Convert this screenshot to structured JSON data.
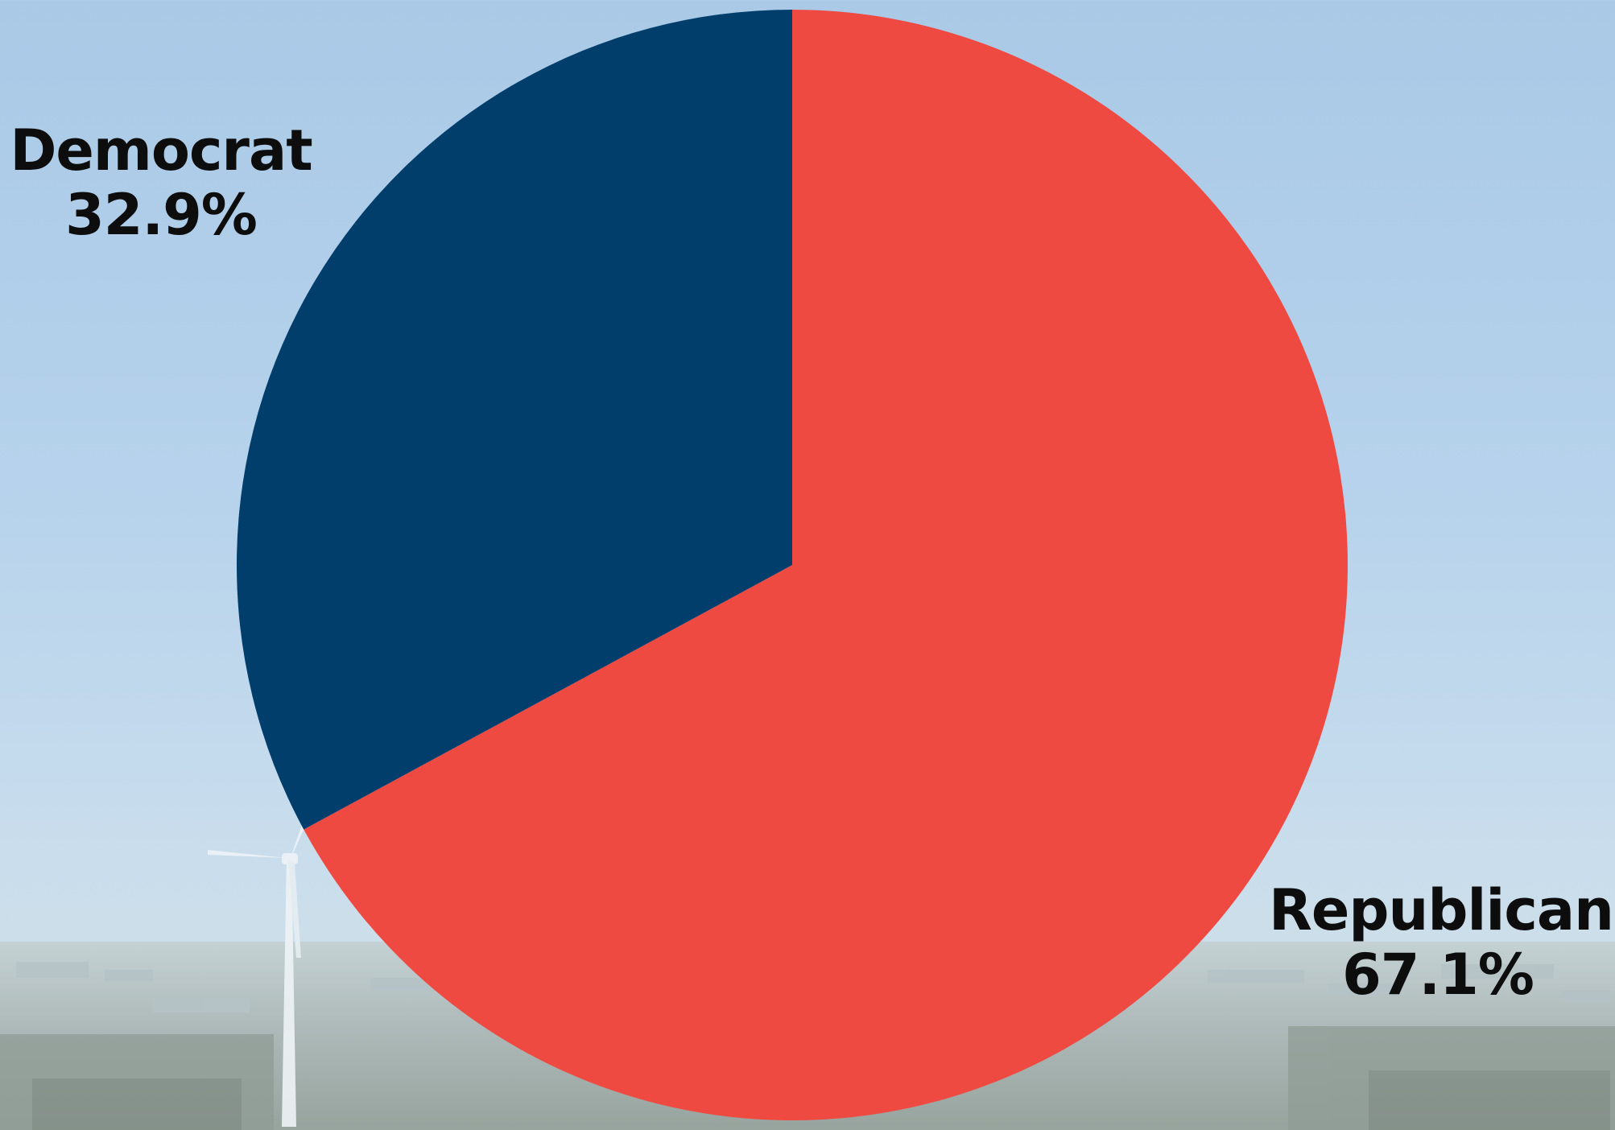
{
  "chart_data": {
    "type": "pie",
    "title": "",
    "slices": [
      {
        "label": "Republican",
        "value": 67.1,
        "value_label": "67.1%",
        "color": "#ef4a42"
      },
      {
        "label": "Democrat",
        "value": 32.9,
        "value_label": "32.9%",
        "color": "#023e6c"
      }
    ],
    "start_angle_deg": 0,
    "direction": "clockwise",
    "legend": "none",
    "background": "photo of city skyline with wind turbine under hazy blue sky"
  }
}
